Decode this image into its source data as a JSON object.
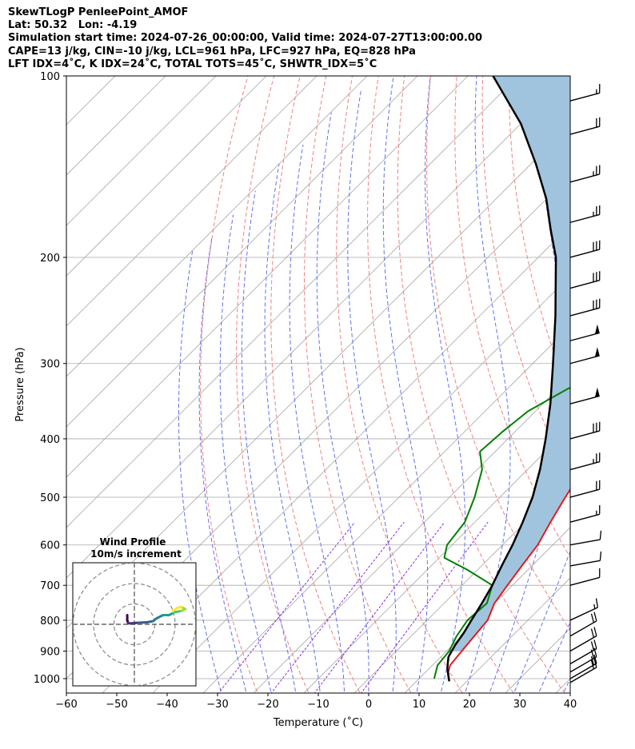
{
  "header": {
    "line1": "SkewTLogP PenleePoint_AMOF",
    "line2": "Lat: 50.32   Lon: -4.19",
    "line3": "Simulation start time: 2024-07-26_00:00:00, Valid time: 2024-07-27T13:00:00.00",
    "line4": "CAPE=13 j/kg, CIN=-10 j/kg, LCL=961 hPa, LFC=927 hPa, EQ=828 hPa",
    "line5": "LFT IDX=4˚C, K IDX=24˚C, TOTAL TOTS=45˚C, SHWTR_IDX=5˚C"
  },
  "chart_data": {
    "type": "line",
    "subtype": "skew-T log-P diagram",
    "xlabel": "Temperature (˚C)",
    "ylabel": "Pressure (hPa)",
    "xlim": [
      -60,
      40
    ],
    "ylim": [
      1050,
      100
    ],
    "yscale": "log",
    "x_ticks": [
      -60,
      -50,
      -40,
      -30,
      -20,
      -10,
      0,
      10,
      20,
      30,
      40
    ],
    "x_tick_labels": [
      "−60",
      "−50",
      "−40",
      "−30",
      "−20",
      "−10",
      "0",
      "10",
      "20",
      "30",
      "40"
    ],
    "y_ticks": [
      1000,
      900,
      800,
      700,
      600,
      500,
      400,
      300,
      200,
      100
    ],
    "y_tick_labels": [
      "1000",
      "900",
      "800",
      "700",
      "600",
      "500",
      "400",
      "300",
      "200",
      "100"
    ],
    "grid": true,
    "series": [
      {
        "type": "temperature",
        "color": "#e31a1c",
        "points": [
          [
            16.5,
            1010
          ],
          [
            14.5,
            975
          ],
          [
            13.5,
            950
          ],
          [
            13,
            900
          ],
          [
            12.5,
            850
          ],
          [
            12,
            800
          ],
          [
            10,
            750
          ],
          [
            9,
            700
          ],
          [
            8,
            650
          ],
          [
            7,
            600
          ],
          [
            5,
            550
          ],
          [
            3,
            500
          ],
          [
            1,
            450
          ],
          [
            1.5,
            420
          ],
          [
            3.5,
            390
          ],
          [
            4,
            370
          ],
          [
            2,
            340
          ],
          [
            0,
            310
          ],
          [
            -2,
            280
          ],
          [
            -3,
            260
          ],
          [
            -3.5,
            240
          ],
          [
            -3,
            220
          ],
          [
            -2,
            205
          ],
          [
            1,
            195
          ],
          [
            5,
            175
          ],
          [
            9,
            158
          ],
          [
            11,
            150
          ],
          [
            12.5,
            135
          ],
          [
            13,
            127
          ],
          [
            14.5,
            118
          ],
          [
            17,
            110
          ],
          [
            20,
            100
          ]
        ]
      },
      {
        "type": "dewpoint",
        "color": "#008000",
        "points": [
          [
            13,
            1000
          ],
          [
            11,
            950
          ],
          [
            10.5,
            900
          ],
          [
            9,
            850
          ],
          [
            8,
            800
          ],
          [
            8.5,
            750
          ],
          [
            6,
            700
          ],
          [
            -2,
            660
          ],
          [
            -9,
            630
          ],
          [
            -11,
            600
          ],
          [
            -12,
            550
          ],
          [
            -15,
            500
          ],
          [
            -19,
            450
          ],
          [
            -23,
            420
          ],
          [
            -22.5,
            390
          ],
          [
            -21.5,
            360
          ],
          [
            -18,
            330
          ],
          [
            -12,
            300
          ],
          [
            -11,
            290
          ],
          [
            -14,
            270
          ],
          [
            -16,
            260
          ],
          [
            -13,
            240
          ],
          [
            -11,
            215
          ],
          [
            -10,
            200
          ],
          [
            -10,
            185
          ],
          [
            -11,
            172
          ],
          [
            -17,
            160
          ],
          [
            -16,
            150
          ],
          [
            -13,
            138
          ],
          [
            -8,
            118
          ],
          [
            -5,
            108
          ],
          [
            -2,
            100
          ]
        ]
      },
      {
        "type": "parcel",
        "color": "#000000",
        "points": [
          [
            16.5,
            1010
          ],
          [
            15,
            985
          ],
          [
            13.5,
            960
          ],
          [
            12.5,
            940
          ],
          [
            11.5,
            920
          ],
          [
            10.5,
            880
          ],
          [
            9.8,
            840
          ],
          [
            8.8,
            800
          ],
          [
            7.5,
            750
          ],
          [
            6,
            700
          ],
          [
            4,
            650
          ],
          [
            2,
            600
          ],
          [
            -0.5,
            550
          ],
          [
            -3.5,
            500
          ],
          [
            -7.5,
            450
          ],
          [
            -12.5,
            400
          ],
          [
            -18.5,
            350
          ],
          [
            -26,
            300
          ],
          [
            -35,
            250
          ],
          [
            -46.5,
            200
          ],
          [
            -53,
            180
          ],
          [
            -60,
            160
          ],
          [
            -69,
            140
          ],
          [
            -80,
            120
          ],
          [
            -95,
            100
          ]
        ]
      }
    ],
    "shaded_area": {
      "between": [
        "temperature",
        "parcel"
      ],
      "color": "#a0c4de"
    },
    "background_lines": {
      "isotherms_color": "#a9a9a9",
      "dry_adiabats_color": "#f08080",
      "moist_adiabats_color": "#6070f0",
      "mixing_ratio_color": "#8a2be2"
    },
    "wind_barbs": {
      "pressures": [
        1015,
        1000,
        975,
        945,
        900,
        850,
        800,
        700,
        650,
        600,
        550,
        500,
        450,
        400,
        350,
        300,
        275,
        250,
        225,
        200,
        175,
        150,
        125,
        110
      ],
      "speeds_kt": [
        20,
        20,
        20,
        20,
        20,
        20,
        15,
        10,
        10,
        10,
        15,
        20,
        25,
        30,
        50,
        50,
        50,
        30,
        30,
        30,
        25,
        25,
        20,
        15
      ],
      "directions_deg": [
        240,
        240,
        240,
        240,
        240,
        240,
        245,
        255,
        260,
        260,
        255,
        255,
        255,
        255,
        255,
        255,
        255,
        255,
        255,
        255,
        255,
        255,
        255,
        255
      ]
    },
    "hodograph": {
      "title": "Wind Profile",
      "subtitle": "10m/s increment",
      "rings": [
        10,
        20,
        30
      ],
      "colormap": "viridis",
      "points": [
        [
          -3.5,
          4.5
        ],
        [
          -3.5,
          2
        ],
        [
          -3,
          0.5
        ],
        [
          -1,
          0.5
        ],
        [
          2,
          0.8
        ],
        [
          6,
          1
        ],
        [
          9,
          1.5
        ],
        [
          11,
          3
        ],
        [
          14,
          4.5
        ],
        [
          17,
          4.5
        ],
        [
          19,
          5.5
        ],
        [
          20,
          6
        ],
        [
          23,
          6.5
        ],
        [
          25,
          7.5
        ],
        [
          23,
          8.5
        ],
        [
          21,
          8
        ],
        [
          19,
          6.5
        ]
      ]
    }
  }
}
